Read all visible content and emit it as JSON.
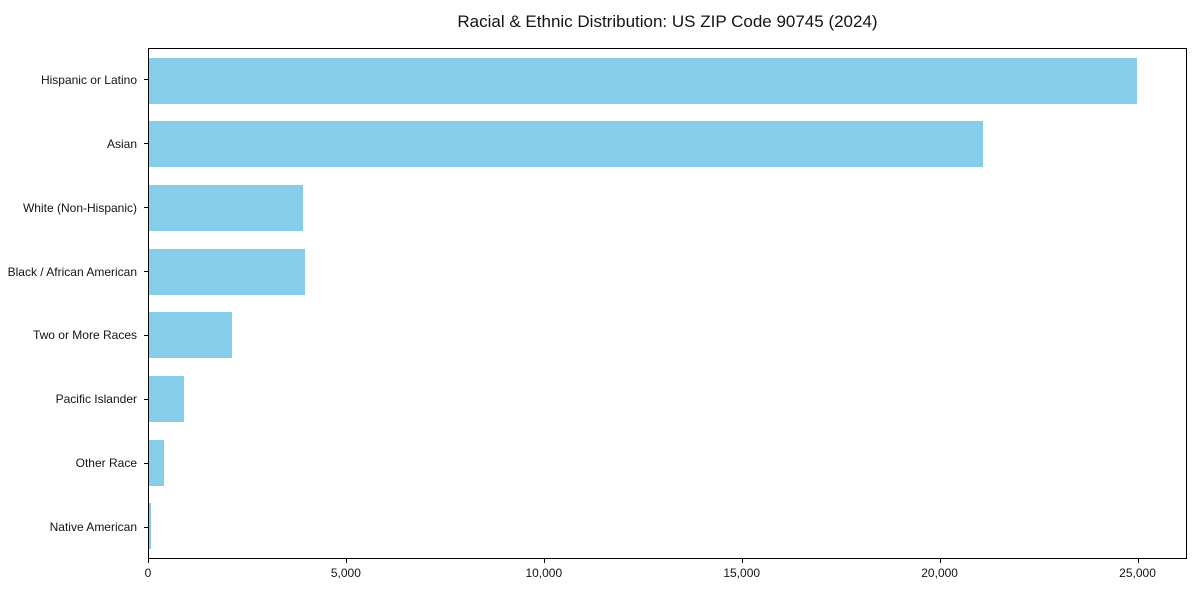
{
  "chart_data": {
    "type": "bar",
    "orientation": "horizontal",
    "title": "Racial & Ethnic Distribution: US ZIP Code 90745 (2024)",
    "categories": [
      "Hispanic or Latino",
      "Asian",
      "White (Non-Hispanic)",
      "Black / African American",
      "Two or More Races",
      "Pacific Islander",
      "Other Race",
      "Native American"
    ],
    "values": [
      25000,
      21100,
      3900,
      3950,
      2100,
      890,
      380,
      50
    ],
    "category_order": "top-to-bottom",
    "xlabel": "",
    "ylabel": "",
    "xlim": [
      0,
      26250
    ],
    "x_ticks": [
      0,
      5000,
      10000,
      15000,
      20000,
      25000
    ],
    "x_tick_labels": [
      "0",
      "5,000",
      "10,000",
      "15,000",
      "20,000",
      "25,000"
    ],
    "bar_color": "#87CEEB",
    "background_color": "#ffffff",
    "spine_color": "#000000",
    "grid": false,
    "legend": null
  }
}
